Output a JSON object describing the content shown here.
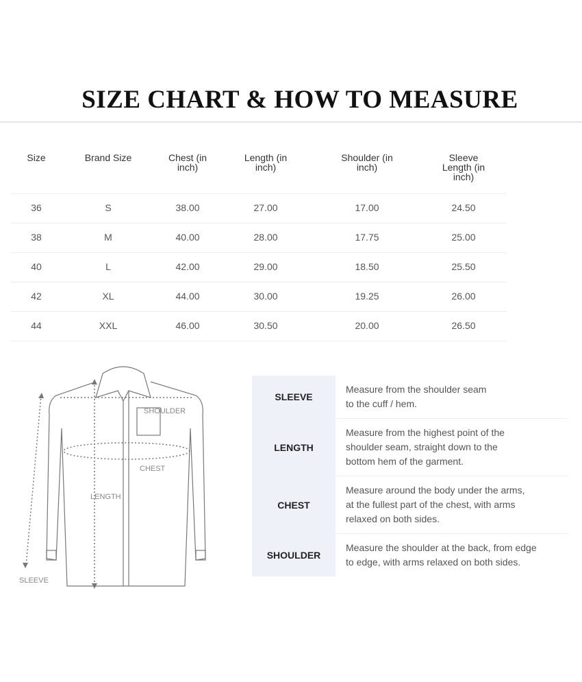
{
  "title": "SIZE CHART & HOW TO MEASURE",
  "size_table": {
    "headers": [
      "Size",
      "Brand Size",
      "Chest (in\ninch)",
      "Length (in\ninch)",
      "Shoulder (in\ninch)",
      "Sleeve\nLength (in\ninch)"
    ],
    "rows": [
      [
        "36",
        "S",
        "38.00",
        "27.00",
        "17.00",
        "24.50"
      ],
      [
        "38",
        "M",
        "40.00",
        "28.00",
        "17.75",
        "25.00"
      ],
      [
        "40",
        "L",
        "42.00",
        "29.00",
        "18.50",
        "25.50"
      ],
      [
        "42",
        "XL",
        "44.00",
        "30.00",
        "19.25",
        "26.00"
      ],
      [
        "44",
        "XXL",
        "46.00",
        "30.50",
        "20.00",
        "26.50"
      ]
    ]
  },
  "diagram": {
    "labels": {
      "shoulder": "SHOULDER",
      "chest": "CHEST",
      "length": "LENGTH",
      "sleeve": "SLEEVE"
    }
  },
  "measure_guide": [
    {
      "label": "SLEEVE",
      "desc": "Measure from the shoulder seam\nto the cuff / hem."
    },
    {
      "label": "LENGTH",
      "desc": "Measure from the highest point of the\nshoulder seam, straight down to the\nbottom hem of the garment."
    },
    {
      "label": "CHEST",
      "desc": "Measure around the body under the arms,\nat the fullest part of the chest, with arms\nrelaxed on both sides."
    },
    {
      "label": "SHOULDER",
      "desc": "Measure the shoulder at the back, from edge\nto edge, with arms relaxed on both sides."
    }
  ],
  "colors": {
    "label_bg": "#eef2f8"
  }
}
